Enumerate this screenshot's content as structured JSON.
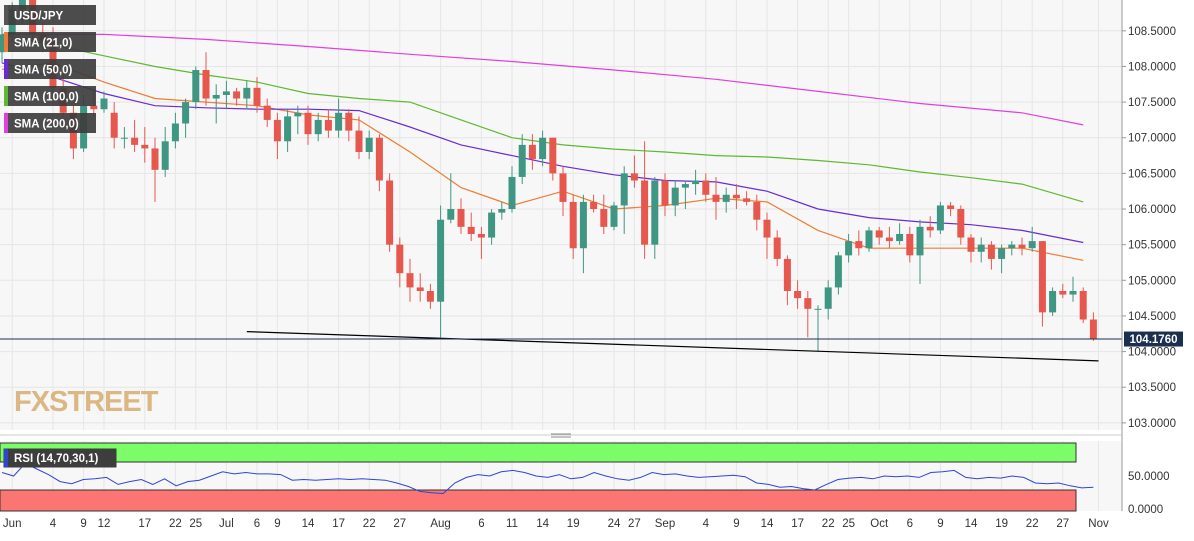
{
  "chart_data": {
    "type": "candlestick",
    "instrument": "USD/JPY",
    "current_price_label": "104.1760",
    "current_price": 104.176,
    "price_axis": {
      "ylim": [
        102.9,
        108.82
      ],
      "ticks": [
        103.0,
        103.5,
        104.0,
        104.5,
        105.0,
        105.5,
        106.0,
        106.5,
        107.0,
        107.5,
        108.0,
        108.5
      ],
      "tick_labels": [
        "103.0000",
        "103.5000",
        "104.0000",
        "104.5000",
        "105.0000",
        "105.5000",
        "106.0000",
        "106.5000",
        "107.0000",
        "107.5000",
        "108.0000",
        "108.5000"
      ]
    },
    "x_axis": {
      "tick_labels": [
        "Jun",
        "4",
        "9",
        "12",
        "17",
        "22",
        "25",
        "Jul",
        "6",
        "9",
        "14",
        "17",
        "22",
        "27",
        "Aug",
        "6",
        "11",
        "14",
        "19",
        "24",
        "27",
        "Sep",
        "4",
        "9",
        "14",
        "17",
        "22",
        "25",
        "Oct",
        "6",
        "9",
        "14",
        "19",
        "22",
        "27",
        "Nov"
      ],
      "tick_bar_index": [
        1,
        5,
        8,
        10,
        14,
        17,
        19,
        22,
        25,
        27,
        30,
        33,
        36,
        39,
        43,
        47,
        50,
        53,
        56,
        60,
        62,
        65,
        69,
        72,
        75,
        78,
        81,
        83,
        86,
        89,
        92,
        95,
        98,
        101,
        104,
        107.5
      ]
    },
    "candles": [
      [
        108.2,
        108.55,
        108.05,
        108.45
      ],
      [
        108.45,
        108.9,
        108.35,
        108.8
      ],
      [
        108.8,
        109.2,
        108.6,
        108.95
      ],
      [
        108.95,
        108.95,
        108.35,
        108.45
      ],
      [
        108.45,
        108.6,
        108.2,
        108.35
      ],
      [
        108.35,
        108.55,
        107.6,
        107.7
      ],
      [
        107.7,
        107.95,
        107.3,
        107.35
      ],
      [
        107.35,
        107.45,
        106.7,
        106.85
      ],
      [
        106.85,
        107.6,
        106.8,
        107.45
      ],
      [
        107.45,
        107.65,
        107.3,
        107.4
      ],
      [
        107.4,
        107.65,
        107.35,
        107.55
      ],
      [
        107.35,
        107.5,
        106.85,
        107.0
      ],
      [
        107.0,
        107.15,
        106.85,
        107.0
      ],
      [
        107.0,
        107.25,
        106.8,
        106.9
      ],
      [
        106.9,
        107.15,
        106.65,
        106.85
      ],
      [
        106.85,
        107.0,
        106.1,
        106.55
      ],
      [
        106.55,
        107.15,
        106.45,
        106.95
      ],
      [
        106.95,
        107.35,
        106.85,
        107.2
      ],
      [
        107.2,
        107.55,
        107.0,
        107.5
      ],
      [
        107.5,
        108.0,
        107.4,
        107.95
      ],
      [
        107.95,
        108.2,
        107.45,
        107.55
      ],
      [
        107.55,
        107.75,
        107.2,
        107.6
      ],
      [
        107.6,
        107.8,
        107.4,
        107.65
      ],
      [
        107.65,
        107.7,
        107.45,
        107.55
      ],
      [
        107.55,
        107.8,
        107.4,
        107.7
      ],
      [
        107.7,
        107.85,
        107.35,
        107.45
      ],
      [
        107.45,
        107.55,
        107.15,
        107.25
      ],
      [
        107.25,
        107.35,
        106.7,
        106.95
      ],
      [
        106.95,
        107.4,
        106.8,
        107.3
      ],
      [
        107.3,
        107.45,
        107.05,
        107.35
      ],
      [
        107.35,
        107.45,
        106.9,
        107.05
      ],
      [
        107.05,
        107.35,
        106.95,
        107.25
      ],
      [
        107.25,
        107.4,
        107.0,
        107.1
      ],
      [
        107.1,
        107.55,
        107.0,
        107.35
      ],
      [
        107.35,
        107.4,
        106.95,
        107.1
      ],
      [
        107.1,
        107.3,
        106.7,
        106.8
      ],
      [
        106.8,
        107.1,
        106.7,
        107.0
      ],
      [
        107.0,
        107.05,
        106.25,
        106.4
      ],
      [
        106.4,
        106.5,
        105.4,
        105.5
      ],
      [
        105.5,
        105.6,
        104.9,
        105.1
      ],
      [
        105.1,
        105.3,
        104.7,
        104.9
      ],
      [
        104.9,
        105.1,
        104.7,
        104.85
      ],
      [
        104.85,
        104.95,
        104.6,
        104.7
      ],
      [
        104.7,
        106.05,
        104.2,
        105.85
      ],
      [
        105.85,
        106.5,
        105.8,
        106.0
      ],
      [
        106.0,
        106.15,
        105.65,
        105.75
      ],
      [
        105.75,
        105.95,
        105.55,
        105.65
      ],
      [
        105.65,
        105.75,
        105.3,
        105.6
      ],
      [
        105.6,
        106.0,
        105.5,
        105.95
      ],
      [
        105.95,
        106.1,
        105.85,
        106.0
      ],
      [
        106.0,
        106.6,
        105.95,
        106.45
      ],
      [
        106.45,
        107.05,
        106.35,
        106.9
      ],
      [
        106.9,
        107.05,
        106.55,
        106.7
      ],
      [
        106.7,
        107.1,
        106.6,
        107.0
      ],
      [
        107.0,
        107.0,
        106.4,
        106.5
      ],
      [
        106.5,
        106.6,
        105.9,
        106.1
      ],
      [
        106.1,
        106.2,
        105.3,
        105.45
      ],
      [
        105.45,
        106.2,
        105.1,
        106.1
      ],
      [
        106.1,
        106.2,
        105.95,
        106.0
      ],
      [
        106.0,
        106.2,
        105.65,
        105.75
      ],
      [
        105.75,
        106.1,
        105.7,
        106.05
      ],
      [
        106.05,
        106.6,
        105.65,
        106.5
      ],
      [
        106.5,
        106.75,
        106.3,
        106.4
      ],
      [
        106.4,
        106.95,
        105.3,
        105.5
      ],
      [
        105.5,
        106.45,
        105.3,
        106.4
      ],
      [
        106.4,
        106.5,
        105.9,
        106.05
      ],
      [
        106.05,
        106.4,
        105.9,
        106.3
      ],
      [
        106.3,
        106.4,
        106.0,
        106.35
      ],
      [
        106.35,
        106.55,
        106.2,
        106.4
      ],
      [
        106.4,
        106.5,
        106.1,
        106.2
      ],
      [
        106.2,
        106.45,
        105.85,
        106.1
      ],
      [
        106.1,
        106.3,
        105.95,
        106.2
      ],
      [
        106.2,
        106.35,
        106.0,
        106.15
      ],
      [
        106.15,
        106.25,
        106.05,
        106.1
      ],
      [
        106.1,
        106.2,
        105.7,
        105.85
      ],
      [
        105.85,
        105.95,
        105.3,
        105.6
      ],
      [
        105.6,
        105.7,
        105.2,
        105.3
      ],
      [
        105.3,
        105.35,
        104.65,
        104.85
      ],
      [
        104.85,
        105.0,
        104.6,
        104.75
      ],
      [
        104.75,
        104.85,
        104.2,
        104.6
      ],
      [
        104.6,
        104.65,
        104.0,
        104.6
      ],
      [
        104.6,
        105.0,
        104.45,
        104.9
      ],
      [
        104.9,
        105.4,
        104.8,
        105.35
      ],
      [
        105.35,
        105.65,
        105.25,
        105.55
      ],
      [
        105.55,
        105.7,
        105.35,
        105.45
      ],
      [
        105.45,
        105.75,
        105.4,
        105.7
      ],
      [
        105.7,
        105.75,
        105.5,
        105.6
      ],
      [
        105.6,
        105.75,
        105.45,
        105.55
      ],
      [
        105.55,
        105.8,
        105.5,
        105.65
      ],
      [
        105.65,
        105.75,
        105.25,
        105.35
      ],
      [
        105.35,
        105.85,
        104.95,
        105.75
      ],
      [
        105.75,
        105.9,
        105.6,
        105.7
      ],
      [
        105.7,
        106.1,
        105.65,
        106.05
      ],
      [
        106.05,
        106.1,
        105.9,
        106.0
      ],
      [
        106.0,
        106.05,
        105.5,
        105.6
      ],
      [
        105.6,
        105.65,
        105.25,
        105.4
      ],
      [
        105.4,
        105.6,
        105.25,
        105.5
      ],
      [
        105.5,
        105.55,
        105.15,
        105.3
      ],
      [
        105.3,
        105.5,
        105.1,
        105.45
      ],
      [
        105.45,
        105.55,
        105.35,
        105.5
      ],
      [
        105.5,
        105.6,
        105.35,
        105.45
      ],
      [
        105.45,
        105.75,
        105.4,
        105.55
      ],
      [
        105.55,
        105.55,
        104.35,
        104.55
      ],
      [
        104.55,
        104.9,
        104.5,
        104.85
      ],
      [
        104.85,
        104.95,
        104.75,
        104.8
      ],
      [
        104.8,
        105.05,
        104.7,
        104.85
      ],
      [
        104.85,
        104.9,
        104.4,
        104.45
      ],
      [
        104.45,
        104.55,
        104.15,
        104.18
      ]
    ],
    "series": [
      {
        "name": "SMA (21,0)",
        "color": "#f07c33",
        "points": [
          [
            0,
            107.96
          ],
          [
            5,
            108.05
          ],
          [
            10,
            107.78
          ],
          [
            15,
            107.55
          ],
          [
            20,
            107.5
          ],
          [
            25,
            107.45
          ],
          [
            30,
            107.32
          ],
          [
            35,
            107.25
          ],
          [
            40,
            106.8
          ],
          [
            45,
            106.3
          ],
          [
            50,
            106.05
          ],
          [
            55,
            106.25
          ],
          [
            60,
            106.0
          ],
          [
            65,
            106.05
          ],
          [
            70,
            106.15
          ],
          [
            75,
            106.1
          ],
          [
            80,
            105.7
          ],
          [
            85,
            105.45
          ],
          [
            90,
            105.45
          ],
          [
            95,
            105.45
          ],
          [
            100,
            105.45
          ],
          [
            106,
            105.28
          ]
        ]
      },
      {
        "name": "SMA (50,0)",
        "color": "#6a2ad6",
        "points": [
          [
            0,
            108.05
          ],
          [
            5,
            107.85
          ],
          [
            10,
            107.62
          ],
          [
            15,
            107.45
          ],
          [
            20,
            107.42
          ],
          [
            25,
            107.4
          ],
          [
            30,
            107.4
          ],
          [
            35,
            107.38
          ],
          [
            40,
            107.15
          ],
          [
            45,
            106.9
          ],
          [
            50,
            106.75
          ],
          [
            55,
            106.6
          ],
          [
            60,
            106.48
          ],
          [
            65,
            106.4
          ],
          [
            70,
            106.38
          ],
          [
            75,
            106.25
          ],
          [
            80,
            106.0
          ],
          [
            85,
            105.88
          ],
          [
            90,
            105.82
          ],
          [
            95,
            105.78
          ],
          [
            100,
            105.7
          ],
          [
            106,
            105.53
          ]
        ]
      },
      {
        "name": "SMA (100,0)",
        "color": "#5fb832",
        "points": [
          [
            0,
            108.45
          ],
          [
            5,
            108.3
          ],
          [
            10,
            108.15
          ],
          [
            15,
            108.0
          ],
          [
            20,
            107.88
          ],
          [
            25,
            107.78
          ],
          [
            30,
            107.62
          ],
          [
            35,
            107.55
          ],
          [
            40,
            107.5
          ],
          [
            45,
            107.25
          ],
          [
            50,
            107.0
          ],
          [
            55,
            106.9
          ],
          [
            60,
            106.84
          ],
          [
            65,
            106.8
          ],
          [
            70,
            106.75
          ],
          [
            75,
            106.73
          ],
          [
            80,
            106.68
          ],
          [
            85,
            106.62
          ],
          [
            90,
            106.52
          ],
          [
            95,
            106.44
          ],
          [
            100,
            106.35
          ],
          [
            106,
            106.1
          ]
        ]
      },
      {
        "name": "SMA (200,0)",
        "color": "#e23fe0",
        "points": [
          [
            0,
            108.45
          ],
          [
            10,
            108.45
          ],
          [
            20,
            108.38
          ],
          [
            30,
            108.28
          ],
          [
            40,
            108.17
          ],
          [
            50,
            108.07
          ],
          [
            60,
            107.95
          ],
          [
            70,
            107.82
          ],
          [
            80,
            107.65
          ],
          [
            90,
            107.48
          ],
          [
            100,
            107.35
          ],
          [
            106,
            107.18
          ]
        ]
      }
    ],
    "trendline": {
      "points": [
        [
          24,
          104.28
        ],
        [
          107.5,
          103.87
        ]
      ]
    },
    "rsi": {
      "label": "RSI (14,70,30,1)",
      "ylim": [
        0,
        100
      ],
      "ticks": [
        0,
        50
      ],
      "tick_labels": [
        "0.0000",
        "50.0000"
      ],
      "overbought": 70,
      "oversold": 30,
      "overbought_color": "#7dfc6a",
      "oversold_color": "#fb7572",
      "line_color": "#2e45d6",
      "values": [
        55,
        50,
        68,
        60,
        52,
        42,
        39,
        45,
        46,
        48,
        38,
        42,
        45,
        38,
        46,
        36,
        42,
        44,
        50,
        56,
        53,
        55,
        53,
        53,
        52,
        44,
        45,
        44,
        45,
        46,
        45,
        46,
        45,
        44,
        40,
        35,
        28,
        26,
        25,
        40,
        48,
        52,
        50,
        56,
        58,
        55,
        50,
        48,
        52,
        46,
        48,
        55,
        50,
        46,
        44,
        48,
        55,
        52,
        53,
        50,
        48,
        49,
        50,
        51,
        49,
        40,
        38,
        34,
        35,
        32,
        30,
        38,
        45,
        47,
        48,
        46,
        50,
        49,
        50,
        48,
        55,
        56,
        58,
        48,
        46,
        48,
        47,
        50,
        48,
        40,
        39,
        40,
        36,
        33,
        34
      ]
    },
    "legend": [
      {
        "label": "USD/JPY",
        "color": "#555555"
      },
      {
        "label": "SMA (21,0)",
        "color": "#f07c33"
      },
      {
        "label": "SMA (50,0)",
        "color": "#6a2ad6"
      },
      {
        "label": "SMA (100,0)",
        "color": "#5fb832"
      },
      {
        "label": "SMA (200,0)",
        "color": "#e23fe0"
      }
    ],
    "watermark": "FXSTREET",
    "colors": {
      "up": "#3f9683",
      "down": "#e6574e",
      "panel_bg": "#f7f7f7",
      "grid": "#e6e6e6",
      "price_label_bg": "#1c2f50"
    }
  }
}
